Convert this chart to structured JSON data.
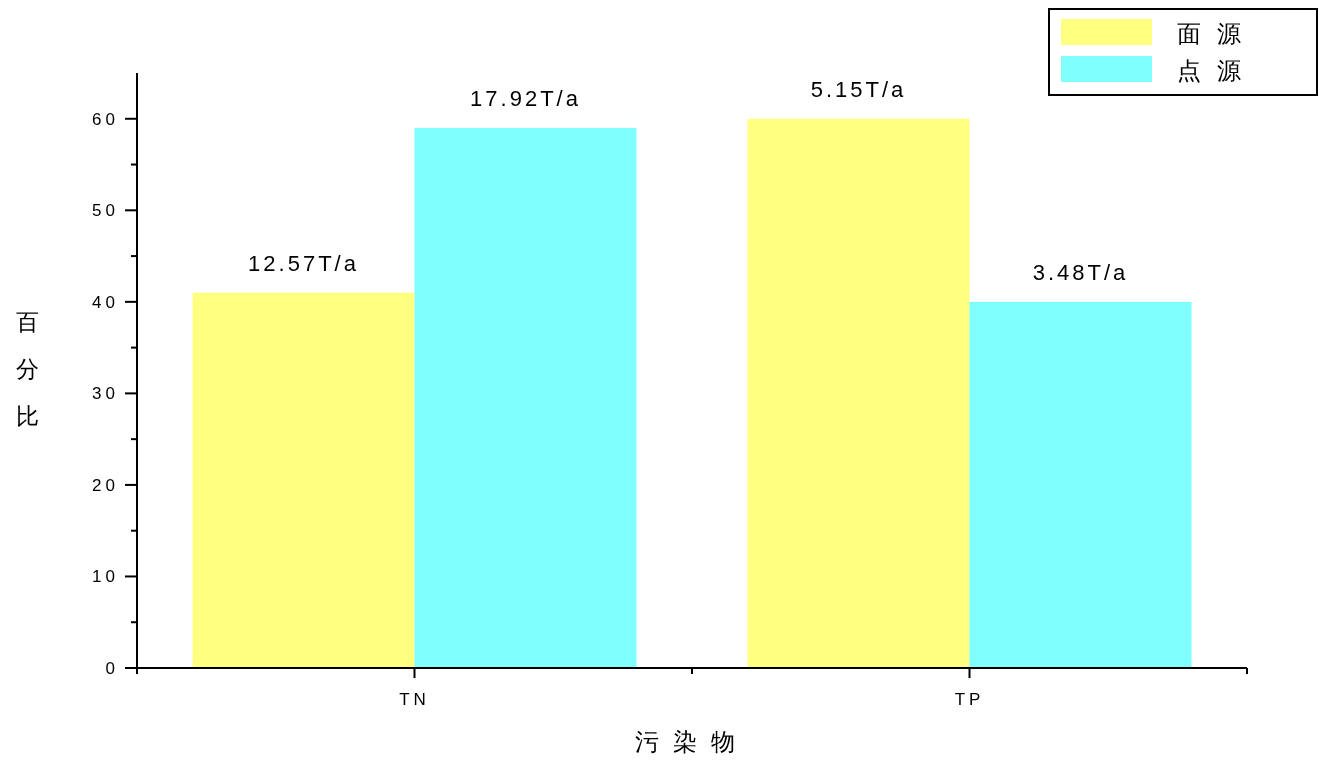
{
  "chart_data": {
    "type": "bar",
    "categories": [
      "TN",
      "TP"
    ],
    "xlabel": "污染物",
    "ylabel": "百分比",
    "ylim": [
      0,
      65
    ],
    "yticks": [
      0,
      {
        "value": 5,
        "label": null
      },
      10,
      {
        "value": 15,
        "label": null
      },
      20,
      {
        "value": 25,
        "label": null
      },
      30,
      {
        "value": 35,
        "label": null
      },
      40,
      {
        "value": 45,
        "label": null
      },
      50,
      {
        "value": 55,
        "label": null
      },
      60
    ],
    "series": [
      {
        "name": "面源",
        "color": "#ffff80",
        "values": [
          41,
          60
        ]
      },
      {
        "name": "点源",
        "color": "#80ffff",
        "values": [
          59,
          40
        ]
      }
    ],
    "legend": "top right",
    "annotations": [
      {
        "text": "12.57T/a",
        "x": "TN",
        "y": 41
      },
      {
        "text": "17.92T/a",
        "x": "TN",
        "y": 59
      },
      {
        "text": "5.15T/a",
        "x": "TP",
        "y": 60
      },
      {
        "text": "3.48T/a",
        "x": "TP",
        "y": 40
      }
    ]
  }
}
